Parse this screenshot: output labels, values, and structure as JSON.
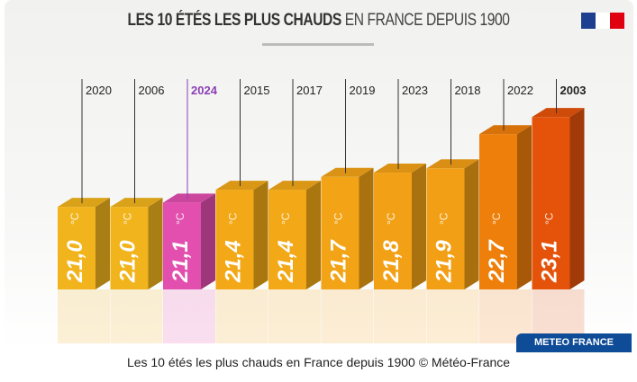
{
  "title_bold": "LES 10 ÉTÉS LES PLUS CHAUDS",
  "title_rest": " EN FRANCE DEPUIS 1900",
  "badge": "METEO FRANCE",
  "caption": "Les 10 étés les plus chauds en France depuis 1900 © Météo-France",
  "chart_data": {
    "type": "bar",
    "title": "LES 10 ÉTÉS LES PLUS CHAUDS EN FRANCE DEPUIS 1900",
    "unit": "°C",
    "categories": [
      "2020",
      "2006",
      "2024",
      "2015",
      "2017",
      "2019",
      "2023",
      "2018",
      "2022",
      "2003"
    ],
    "values": [
      21.0,
      21.0,
      21.1,
      21.4,
      21.4,
      21.7,
      21.8,
      21.9,
      22.7,
      23.1
    ],
    "labels": [
      "21,0",
      "21,0",
      "21,1",
      "21,4",
      "21,4",
      "21,7",
      "21,8",
      "21,9",
      "22,7",
      "23,1"
    ],
    "colors": [
      "#f1b41c",
      "#f1b41c",
      "#e24fae",
      "#f2a817",
      "#f2a817",
      "#f2a316",
      "#f2a116",
      "#f29f16",
      "#ef7f0b",
      "#e5530b"
    ],
    "highlight": {
      "category": "2024",
      "color": "#8b3fb5"
    },
    "bold_category": "2003"
  }
}
